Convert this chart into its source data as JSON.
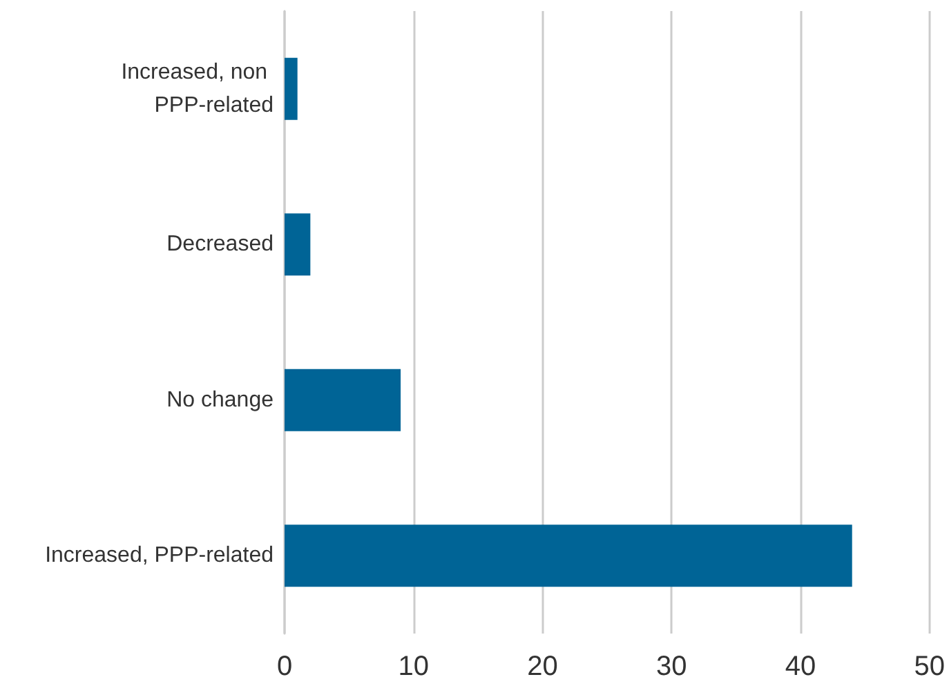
{
  "chart_data": {
    "type": "bar",
    "orientation": "horizontal",
    "categories": [
      "Increased, non PPP-related",
      "Decreased",
      "No change",
      "Increased, PPP-related"
    ],
    "values": [
      1,
      2,
      9,
      44
    ],
    "color": "#006496",
    "xlim": [
      0,
      50
    ],
    "xticks": [
      0,
      10,
      20,
      30,
      40,
      50
    ],
    "grid": "x"
  }
}
